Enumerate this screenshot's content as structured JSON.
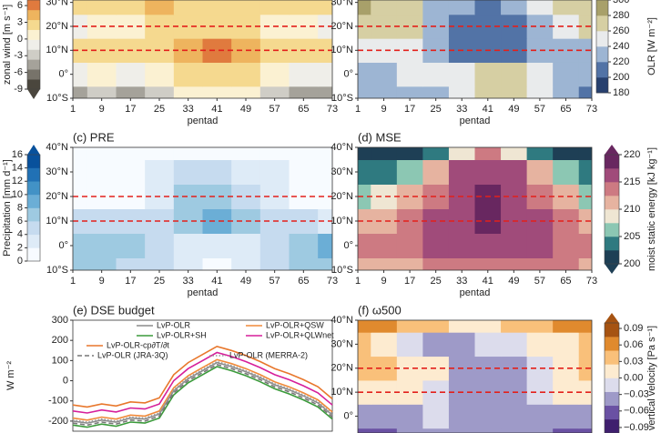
{
  "chart_data": [
    {
      "type": "heatmap",
      "x": [
        1,
        9,
        17,
        25,
        33,
        41,
        49,
        57,
        65,
        73
      ],
      "y": [
        -10,
        0,
        10,
        20,
        30
      ],
      "z": [
        [
          -4,
          -3,
          -4,
          -2,
          0,
          1,
          0,
          -2,
          -4,
          -5
        ],
        [
          -1,
          0,
          -1,
          0,
          2,
          3,
          2,
          0,
          -1,
          -1
        ],
        [
          2,
          3,
          2,
          3,
          4,
          6,
          4,
          3,
          2,
          2
        ],
        [
          -1,
          0,
          1,
          2,
          3,
          2,
          2,
          1,
          0,
          -1
        ],
        [
          2,
          3,
          3,
          4,
          2,
          2,
          3,
          3,
          3,
          2
        ]
      ],
      "xlim": [
        1,
        73
      ],
      "xticks": [
        1,
        9,
        17,
        25,
        33,
        41,
        49,
        57,
        65,
        73
      ],
      "xlabel": "pentad",
      "ylim": [
        -10,
        31
      ],
      "yticks": [
        {
          "value": -10,
          "label": "10°S"
        },
        {
          "value": 0,
          "label": "0°"
        },
        {
          "value": 10,
          "label": "10°N"
        },
        {
          "value": 20,
          "label": "20°N"
        },
        {
          "value": 30,
          "label": "30°N"
        }
      ],
      "hlines": [
        10,
        20
      ],
      "hline_color": "#e3201b",
      "colorbar": {
        "label": "zonal wind [m s⁻¹]",
        "clim": [
          -9,
          7
        ],
        "ticks": [
          6,
          3,
          0,
          -3,
          -6,
          -9
        ],
        "extend": "min",
        "colors": [
          "#4a463d",
          "#77736a",
          "#a5a29a",
          "#cfcdc6",
          "#efeee9",
          "#fbf1d2",
          "#f5d98f",
          "#eeb45e",
          "#e07a3e"
        ]
      }
    },
    {
      "type": "heatmap",
      "x": [
        1,
        9,
        17,
        25,
        33,
        41,
        49,
        57,
        65,
        73
      ],
      "y": [
        -10,
        0,
        10,
        20,
        30
      ],
      "z": [
        [
          220,
          220,
          230,
          230,
          250,
          260,
          260,
          240,
          220,
          210
        ],
        [
          230,
          230,
          240,
          240,
          250,
          260,
          260,
          240,
          230,
          220
        ],
        [
          250,
          250,
          250,
          220,
          200,
          200,
          210,
          220,
          230,
          230
        ],
        [
          270,
          270,
          260,
          230,
          210,
          200,
          210,
          230,
          250,
          260
        ],
        [
          280,
          270,
          260,
          230,
          220,
          210,
          220,
          240,
          260,
          270
        ]
      ],
      "xlim": [
        1,
        73
      ],
      "xticks": [
        1,
        9,
        17,
        25,
        33,
        41,
        49,
        57,
        65,
        73
      ],
      "xlabel": "pentad",
      "ylim": [
        -10,
        31
      ],
      "yticks": [
        {
          "value": -10,
          "label": "10°S"
        },
        {
          "value": 0,
          "label": "0°"
        },
        {
          "value": 10,
          "label": "10°N"
        },
        {
          "value": 20,
          "label": "20°N"
        },
        {
          "value": 30,
          "label": "30°N"
        }
      ],
      "hlines": [
        10,
        20
      ],
      "hline_color": "#e3201b",
      "colorbar": {
        "label": "OLR [W m⁻²]",
        "clim": [
          180,
          300
        ],
        "ticks": [
          300,
          280,
          260,
          240,
          220,
          200,
          180
        ],
        "extend": "none",
        "colors": [
          "#27406e",
          "#5273a6",
          "#9db5d3",
          "#e9ebec",
          "#d6cfa3",
          "#a8a06a"
        ]
      }
    },
    {
      "type": "heatmap",
      "title": "(c) PRE",
      "x": [
        1,
        9,
        17,
        25,
        33,
        41,
        49,
        57,
        65,
        73
      ],
      "y": [
        -10,
        0,
        10,
        20,
        30,
        40
      ],
      "z": [
        [
          6,
          6,
          5,
          4,
          2,
          1,
          2,
          4,
          6,
          7
        ],
        [
          7,
          7,
          6,
          5,
          3,
          2,
          3,
          5,
          7,
          8
        ],
        [
          4,
          4,
          4,
          5,
          6,
          8,
          6,
          5,
          4,
          3
        ],
        [
          1,
          1,
          1,
          3,
          6,
          6,
          5,
          3,
          1,
          1
        ],
        [
          0,
          0,
          1,
          2,
          5,
          4,
          3,
          2,
          1,
          0
        ],
        [
          0,
          0,
          0,
          0,
          1,
          1,
          1,
          0,
          0,
          0
        ]
      ],
      "xlim": [
        1,
        73
      ],
      "xticks": [
        1,
        9,
        17,
        25,
        33,
        41,
        49,
        57,
        65,
        73
      ],
      "xlabel": "pentad",
      "ylim": [
        -10,
        40
      ],
      "yticks": [
        {
          "value": -10,
          "label": "10°S"
        },
        {
          "value": 0,
          "label": "0°"
        },
        {
          "value": 10,
          "label": "10°N"
        },
        {
          "value": 20,
          "label": "20°N"
        },
        {
          "value": 30,
          "label": "30°N"
        },
        {
          "value": 40,
          "label": "40°N"
        }
      ],
      "hlines": [
        10,
        20
      ],
      "hline_color": "#e3201b",
      "colorbar": {
        "label": "Precipitation [mm d⁻¹]",
        "clim": [
          0,
          16
        ],
        "ticks": [
          16,
          14,
          12,
          10,
          8,
          6,
          4,
          2,
          0
        ],
        "extend": "max",
        "colors": [
          "#f7fbff",
          "#deebf7",
          "#c6dbef",
          "#9ecae1",
          "#6baed6",
          "#4292c6",
          "#2171b5",
          "#08519c"
        ]
      }
    },
    {
      "type": "heatmap",
      "title": "(d) MSE",
      "x": [
        1,
        9,
        17,
        25,
        33,
        41,
        49,
        57,
        65,
        73
      ],
      "y": [
        -10,
        0,
        10,
        20,
        30,
        40
      ],
      "z": [
        [
          212,
          212,
          212,
          213,
          213,
          213,
          213,
          213,
          213,
          212
        ],
        [
          213,
          213,
          214,
          215,
          216,
          216,
          216,
          215,
          214,
          213
        ],
        [
          211,
          212,
          213,
          215,
          217,
          218,
          217,
          215,
          213,
          211
        ],
        [
          207,
          208,
          210,
          214,
          217,
          218,
          217,
          214,
          210,
          207
        ],
        [
          203,
          204,
          206,
          210,
          215,
          217,
          215,
          210,
          206,
          203
        ],
        [
          200,
          200,
          201,
          204,
          208,
          214,
          208,
          204,
          201,
          200
        ]
      ],
      "xlim": [
        1,
        73
      ],
      "xticks": [
        1,
        9,
        17,
        25,
        33,
        41,
        49,
        57,
        65,
        73
      ],
      "xlabel": "pentad",
      "ylim": [
        -10,
        40
      ],
      "yticks": [
        {
          "value": -10,
          "label": "10°S"
        },
        {
          "value": 0,
          "label": "0°"
        },
        {
          "value": 10,
          "label": "10°N"
        },
        {
          "value": 20,
          "label": "20°N"
        },
        {
          "value": 30,
          "label": "30°N"
        },
        {
          "value": 40,
          "label": "40°N"
        }
      ],
      "hlines": [
        10,
        20
      ],
      "hline_color": "#e3201b",
      "colorbar": {
        "label": "moist static energy [kJ kg⁻¹]",
        "clim": [
          200,
          220
        ],
        "ticks": [
          220,
          215,
          210,
          205,
          200
        ],
        "extend": "both",
        "colors": [
          "#1e3f55",
          "#2f7a80",
          "#8cc7b3",
          "#efe6d3",
          "#e6b3a0",
          "#cd7a82",
          "#a04b7a",
          "#682760"
        ]
      }
    },
    {
      "type": "line",
      "title": "(e) DSE budget",
      "x": [
        1,
        5,
        9,
        13,
        17,
        21,
        25,
        29,
        33,
        37,
        41,
        45,
        49,
        53,
        57,
        61,
        65,
        69,
        73
      ],
      "xlim": [
        1,
        73
      ],
      "ylim": [
        -250,
        300
      ],
      "yticks": [
        300,
        200,
        100,
        0,
        -100,
        -200
      ],
      "ylabel": "W m⁻²",
      "series": [
        {
          "name": "LvP-OLR",
          "color": "#8c8c8c",
          "dash": "solid",
          "values": [
            -200,
            -210,
            -195,
            -205,
            -185,
            -190,
            -165,
            -50,
            10,
            50,
            90,
            70,
            45,
            15,
            -20,
            -45,
            -75,
            -110,
            -170
          ]
        },
        {
          "name": "LvP-OLR+SH",
          "color": "#3a9a3a",
          "dash": "solid",
          "values": [
            -220,
            -230,
            -215,
            -225,
            -205,
            -210,
            -185,
            -70,
            -10,
            30,
            70,
            50,
            25,
            -5,
            -40,
            -65,
            -95,
            -130,
            -190
          ]
        },
        {
          "name": "LvP-OLR+QSW",
          "color": "#f08a3a",
          "dash": "solid",
          "values": [
            -185,
            -195,
            -180,
            -190,
            -170,
            -175,
            -150,
            -35,
            25,
            65,
            105,
            85,
            60,
            30,
            -5,
            -30,
            -60,
            -95,
            -155
          ]
        },
        {
          "name": "LvP-OLR+QLWnet",
          "color": "#d61f9a",
          "dash": "solid",
          "values": [
            -150,
            -160,
            -145,
            -155,
            -135,
            -140,
            -115,
            0,
            60,
            100,
            140,
            120,
            95,
            65,
            30,
            5,
            -25,
            -60,
            -120
          ]
        },
        {
          "name": "LvP-OLR-cp∂T/∂t",
          "color": "#e8772c",
          "dash": "solid",
          "values": [
            -120,
            -130,
            -115,
            -125,
            -105,
            -110,
            -85,
            30,
            90,
            130,
            170,
            150,
            125,
            95,
            60,
            35,
            5,
            -30,
            -90
          ]
        },
        {
          "name": "LvP-OLR (JRA-3Q)",
          "color": "#777777",
          "dash": "dashed",
          "values": [
            -210,
            -220,
            -205,
            -215,
            -195,
            -200,
            -175,
            -60,
            0,
            40,
            80,
            60,
            35,
            5,
            -30,
            -55,
            -85,
            -120,
            -180
          ]
        },
        {
          "name": "LvP-OLR (MERRA-2)",
          "color": "#999999",
          "dash": "dotted",
          "values": [
            -195,
            -205,
            -190,
            -200,
            -180,
            -185,
            -160,
            -45,
            15,
            55,
            95,
            75,
            50,
            20,
            -15,
            -40,
            -70,
            -105,
            -165
          ]
        }
      ]
    },
    {
      "type": "heatmap",
      "title": "(f) ω500",
      "x": [
        1,
        9,
        17,
        25,
        33,
        41,
        49,
        57,
        65,
        73
      ],
      "y": [
        -10,
        0,
        10,
        20,
        30,
        40
      ],
      "z": [
        [
          -0.06,
          -0.06,
          -0.05,
          -0.04,
          -0.05,
          -0.05,
          -0.05,
          -0.05,
          -0.06,
          -0.06
        ],
        [
          -0.03,
          -0.04,
          -0.03,
          -0.02,
          -0.03,
          -0.04,
          -0.03,
          -0.03,
          -0.04,
          -0.05
        ],
        [
          0.02,
          0.01,
          0.01,
          -0.02,
          -0.04,
          -0.05,
          -0.04,
          -0.02,
          0.0,
          0.01
        ],
        [
          0.03,
          0.03,
          0.02,
          0.0,
          -0.03,
          -0.05,
          -0.04,
          -0.01,
          0.02,
          0.03
        ],
        [
          0.03,
          0.02,
          -0.02,
          -0.04,
          -0.03,
          -0.02,
          -0.02,
          0.0,
          0.02,
          0.03
        ],
        [
          0.05,
          0.05,
          0.04,
          0.03,
          0.02,
          0.02,
          0.03,
          0.04,
          0.05,
          0.05
        ]
      ],
      "xlim": [
        1,
        73
      ],
      "ylim": [
        -7,
        40
      ],
      "yticks": [
        {
          "value": 0,
          "label": "0°"
        },
        {
          "value": 10,
          "label": "10°N"
        },
        {
          "value": 20,
          "label": "20°N"
        },
        {
          "value": 30,
          "label": "30°N"
        },
        {
          "value": 40,
          "label": "40°N"
        }
      ],
      "hlines": [
        10,
        20
      ],
      "hline_color": "#e3201b",
      "colorbar": {
        "label": "vertical velocity [Pa s⁻¹]",
        "clim": [
          -0.1,
          0.1
        ],
        "ticks": [
          0.09,
          0.06,
          0.03,
          {
            "value": 0,
            "label": "0.00"
          },
          {
            "value": -0.03,
            "label": "−0.03"
          },
          {
            "value": -0.06,
            "label": "−0.06"
          },
          {
            "value": -0.09,
            "label": "−0.09"
          }
        ],
        "extend": "max",
        "colors": [
          "#3f1f6e",
          "#6a51a3",
          "#9e9ac8",
          "#dcdcec",
          "#fdebd0",
          "#f9c07a",
          "#e08a2e",
          "#a65312"
        ]
      }
    }
  ]
}
